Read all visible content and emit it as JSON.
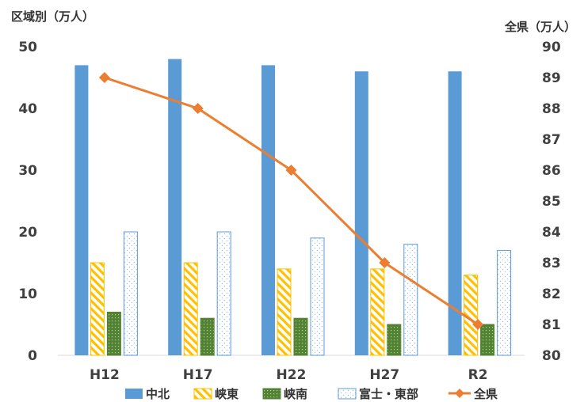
{
  "chart_data": {
    "type": "bar+line",
    "categories": [
      "H12",
      "H17",
      "H22",
      "H27",
      "R2"
    ],
    "left_axis": {
      "label": "区域別（万人）",
      "min": 0,
      "max": 50,
      "ticks": [
        0,
        10,
        20,
        30,
        40,
        50
      ]
    },
    "right_axis": {
      "label": "全県（万人）",
      "min": 80,
      "max": 90,
      "ticks": [
        80,
        81,
        82,
        83,
        84,
        85,
        86,
        87,
        88,
        89,
        90
      ]
    },
    "series": [
      {
        "name": "中北",
        "type": "bar",
        "axis": "left",
        "values": [
          47,
          48,
          47,
          46,
          46
        ],
        "color": "#5b9bd5",
        "fill": "solid"
      },
      {
        "name": "峡東",
        "type": "bar",
        "axis": "left",
        "values": [
          15,
          15,
          14,
          14,
          13
        ],
        "color": "#ffc000",
        "fill": "diagonal-stripes"
      },
      {
        "name": "峡南",
        "type": "bar",
        "axis": "left",
        "values": [
          7,
          6,
          6,
          5,
          5
        ],
        "color": "#548235",
        "fill": "dots"
      },
      {
        "name": "富士・東部",
        "type": "bar",
        "axis": "left",
        "values": [
          20,
          20,
          19,
          18,
          17
        ],
        "color": "#5b9bd5",
        "fill": "light-dots"
      },
      {
        "name": "全県",
        "type": "line",
        "axis": "right",
        "values": [
          89,
          88,
          86,
          83,
          81
        ],
        "color": "#ed7d31",
        "marker": "diamond"
      }
    ],
    "grid": false,
    "legend_position": "bottom"
  }
}
